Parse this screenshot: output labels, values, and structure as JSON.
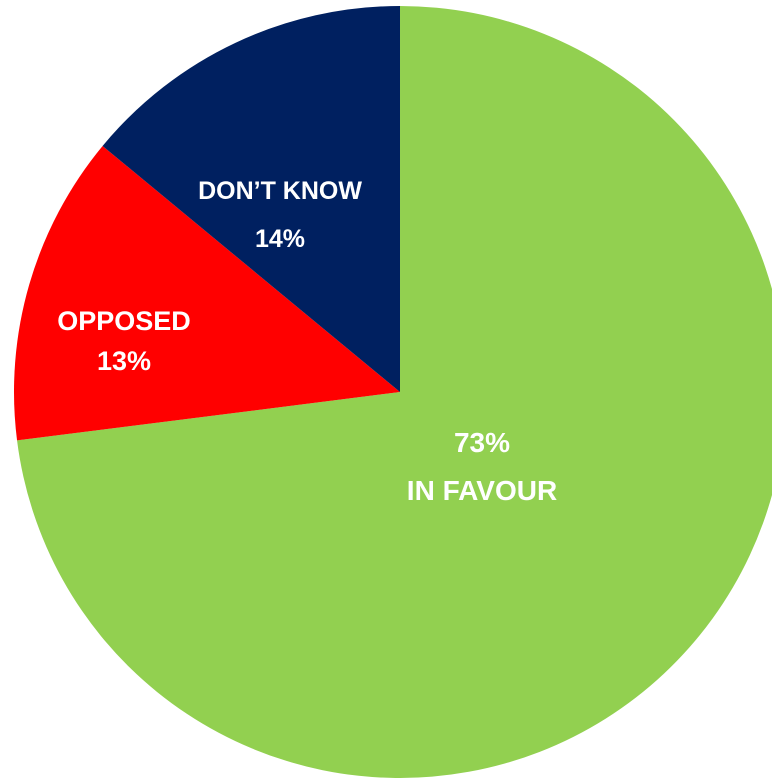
{
  "chart_data": {
    "type": "pie",
    "title": "",
    "start": "top",
    "direction": "clockwise",
    "slices": [
      {
        "label": "IN FAVOUR",
        "value": 73,
        "value_text": "73%",
        "color": "#92d050",
        "label_order": "value-first"
      },
      {
        "label": "OPPOSED",
        "value": 13,
        "value_text": "13%",
        "color": "#ff0000",
        "label_order": "label-first"
      },
      {
        "label": "DON’T KNOW",
        "value": 14,
        "value_text": "14%",
        "color": "#002060",
        "label_order": "label-first"
      }
    ]
  }
}
